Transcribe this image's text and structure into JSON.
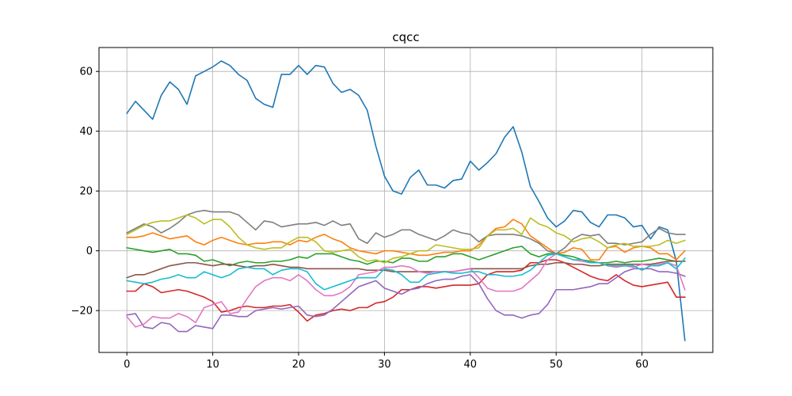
{
  "chart_data": {
    "type": "line",
    "title": "cqcc",
    "xlabel": "",
    "ylabel": "",
    "xlim": [
      -3.25,
      68.25
    ],
    "ylim": [
      -34,
      68
    ],
    "xticks": [
      0,
      10,
      20,
      30,
      40,
      50,
      60
    ],
    "yticks": [
      -20,
      0,
      20,
      40,
      60
    ],
    "grid": true,
    "colors": [
      "#1f77b4",
      "#ff7f0e",
      "#2ca02c",
      "#d62728",
      "#9467bd",
      "#8c564b",
      "#e377c2",
      "#7f7f7f",
      "#bcbd22",
      "#17becf"
    ],
    "x": [
      0,
      1,
      2,
      3,
      4,
      5,
      6,
      7,
      8,
      9,
      10,
      11,
      12,
      13,
      14,
      15,
      16,
      17,
      18,
      19,
      20,
      21,
      22,
      23,
      24,
      25,
      26,
      27,
      28,
      29,
      30,
      31,
      32,
      33,
      34,
      35,
      36,
      37,
      38,
      39,
      40,
      41,
      42,
      43,
      44,
      45,
      46,
      47,
      48,
      49,
      50,
      51,
      52,
      53,
      54,
      55,
      56,
      57,
      58,
      59,
      60,
      61,
      62,
      63,
      64,
      65
    ],
    "series": [
      {
        "values": [
          46,
          50,
          47,
          44,
          52,
          56.5,
          54,
          49,
          58.5,
          60,
          61.5,
          63.5,
          62,
          59,
          57,
          51,
          49,
          48,
          59,
          59,
          62,
          59,
          62,
          61.5,
          56,
          53,
          54,
          52,
          47,
          35,
          25,
          20,
          19,
          24.5,
          27,
          22,
          22,
          21,
          23.5,
          24,
          30,
          27,
          29.5,
          32.5,
          38,
          41.5,
          33,
          21.5,
          16.5,
          11,
          8,
          10,
          13.5,
          13,
          9.5,
          8,
          12,
          12,
          11,
          8,
          8.5,
          4,
          8,
          7,
          -3.5,
          -30
        ]
      },
      {
        "values": [
          4.5,
          4.5,
          5,
          6,
          5,
          4,
          4.5,
          5,
          3,
          2,
          3.5,
          4.5,
          3.5,
          2.5,
          2,
          2.5,
          2.5,
          3,
          3,
          2,
          3.5,
          3,
          4.5,
          5.5,
          4,
          3,
          1,
          0,
          -0.5,
          -1,
          0,
          0,
          -0.5,
          -1,
          -1.5,
          -1.5,
          -1,
          -0.5,
          -0.5,
          0,
          0,
          2,
          5,
          7.5,
          8,
          10.5,
          9,
          5,
          3,
          1,
          -1,
          -0.5,
          1,
          0.5,
          -3,
          -3,
          1,
          1.5,
          -0.5,
          1,
          1.5,
          1,
          -1,
          -1,
          -3,
          0
        ]
      },
      {
        "values": [
          1,
          0.5,
          0,
          -0.5,
          0,
          0.5,
          -1,
          -1,
          -1.5,
          -3.5,
          -3,
          -4,
          -5,
          -4,
          -3.5,
          -4,
          -4,
          -3.5,
          -3.5,
          -3,
          -2,
          -2.5,
          -1,
          -1,
          -1,
          -2,
          -3,
          -3.5,
          -4.5,
          -3.5,
          -3.5,
          -4,
          -2.5,
          -2.5,
          -3.5,
          -3.5,
          -2,
          -2,
          -1,
          -1,
          -2,
          -3,
          -2,
          -1,
          0,
          1,
          1.5,
          -1,
          -2,
          -1,
          -1,
          -1.5,
          -2,
          -3,
          -3.5,
          -4,
          -4,
          -3.5,
          -4,
          -3.5,
          -3.5,
          -3,
          -2.5,
          -3,
          -3.5,
          -3.5
        ]
      },
      {
        "values": [
          -13.5,
          -13.5,
          -11,
          -12,
          -14,
          -13.5,
          -13,
          -13.5,
          -14.5,
          -15.5,
          -17,
          -20.5,
          -20,
          -19,
          -18.5,
          -19,
          -19,
          -18.5,
          -18.5,
          -18,
          -20.5,
          -23.5,
          -21.5,
          -21,
          -20,
          -19.5,
          -20,
          -19,
          -19,
          -17.5,
          -17,
          -15.5,
          -13,
          -13,
          -12,
          -12,
          -12.5,
          -12,
          -11.5,
          -11.5,
          -11.5,
          -11,
          -8,
          -7,
          -7,
          -7,
          -6.5,
          -4,
          -4,
          -3,
          -3,
          -4,
          -5.5,
          -7,
          -8.5,
          -9.5,
          -10,
          -8,
          -10,
          -11.5,
          -12,
          -11.5,
          -11,
          -10.5,
          -15.5,
          -15.5
        ]
      },
      {
        "values": [
          -21.5,
          -21,
          -25.5,
          -26,
          -24,
          -24.5,
          -27,
          -27,
          -25,
          -25.5,
          -26,
          -21.5,
          -21.5,
          -22,
          -22,
          -20,
          -19.5,
          -19,
          -19.5,
          -19,
          -18.5,
          -21.5,
          -22,
          -21.5,
          -19.5,
          -17,
          -14.5,
          -12,
          -11,
          -10,
          -12.5,
          -13.5,
          -14.5,
          -13,
          -12.5,
          -11,
          -10,
          -9.5,
          -9.5,
          -8.5,
          -8,
          -11,
          -16,
          -20,
          -21.5,
          -21.5,
          -22.5,
          -21.5,
          -21,
          -18,
          -13,
          -13,
          -13,
          -12.5,
          -12,
          -11,
          -11,
          -9,
          -7,
          -6,
          -6,
          -6,
          -7,
          -7,
          -7.5,
          -8.5
        ]
      },
      {
        "values": [
          -9,
          -8,
          -8,
          -7,
          -6,
          -5,
          -4.5,
          -4,
          -4,
          -4.5,
          -5,
          -4.5,
          -4.5,
          -5,
          -5.5,
          -5,
          -5,
          -4.5,
          -5,
          -5.5,
          -5.5,
          -6,
          -6,
          -6,
          -6,
          -6,
          -6,
          -6,
          -6.5,
          -6.5,
          -6.5,
          -7,
          -7,
          -7,
          -7,
          -7,
          -7,
          -7,
          -7,
          -6.5,
          -6,
          -6,
          -6,
          -6,
          -6,
          -6,
          -6,
          -5,
          -4.5,
          -4.5,
          -4,
          -4,
          -4.5,
          -4.5,
          -5,
          -5,
          -4.5,
          -4.5,
          -4.5,
          -4.5,
          -4.5,
          -4.5,
          -4,
          -3.5,
          -3.5,
          -3.5
        ]
      },
      {
        "values": [
          -22,
          -25.5,
          -24.5,
          -22,
          -22.5,
          -22.5,
          -21,
          -22,
          -24,
          -19,
          -18,
          -17,
          -21,
          -20.5,
          -16,
          -12,
          -10,
          -9,
          -9,
          -10,
          -8,
          -10,
          -13,
          -15,
          -15,
          -14,
          -12,
          -8,
          -7.5,
          -7,
          -5.5,
          -5.5,
          -5,
          -5.5,
          -7,
          -7.5,
          -7,
          -7,
          -7,
          -6.5,
          -6,
          -9,
          -12.5,
          -13.5,
          -13.5,
          -13.5,
          -12.5,
          -10,
          -7.5,
          -3,
          -1,
          -2,
          -3,
          -3.5,
          -4,
          -4,
          -5,
          -5.5,
          -5,
          -5.5,
          -4.5,
          -5,
          -4.5,
          -4,
          -5,
          -13
        ]
      },
      {
        "values": [
          6,
          7.5,
          9,
          8,
          6,
          7.5,
          9.5,
          12,
          13,
          13.5,
          13,
          13,
          13,
          12,
          9.5,
          7,
          10,
          9.5,
          8,
          8.5,
          9,
          9,
          9.5,
          8.5,
          10,
          8.5,
          9,
          4,
          2.5,
          6,
          4.5,
          5.5,
          7,
          7,
          5.5,
          4.5,
          3.5,
          5,
          7,
          6,
          5.5,
          3,
          5,
          5.5,
          5.5,
          5.5,
          5,
          4,
          2.5,
          0,
          -1,
          1,
          4,
          5.5,
          5,
          5.5,
          2.5,
          2.5,
          2,
          2.5,
          3,
          5.5,
          7.5,
          6,
          5.5,
          5.5
        ]
      },
      {
        "values": [
          5.5,
          7,
          8.5,
          9.5,
          10,
          10,
          11,
          12,
          11,
          9,
          10.5,
          10.5,
          8,
          4.5,
          2,
          1,
          0.5,
          1,
          1,
          3,
          4.5,
          4.5,
          3,
          0,
          -0.5,
          0,
          0.5,
          -2,
          -3.5,
          -3,
          -4,
          -2.5,
          -2,
          -1,
          0,
          0,
          2,
          1.5,
          1,
          0.5,
          0.5,
          1,
          5,
          7,
          7,
          7.5,
          5.5,
          11,
          9,
          8,
          6,
          5,
          3,
          4,
          4.5,
          3,
          1,
          2,
          2.5,
          1.5,
          1.5,
          1.5,
          2,
          3.5,
          2.5,
          3.5
        ]
      },
      {
        "values": [
          -10,
          -10.5,
          -11,
          -10.5,
          -9.5,
          -9,
          -8,
          -9,
          -9,
          -7,
          -8,
          -9,
          -8,
          -6,
          -5.5,
          -6,
          -6,
          -8,
          -6.5,
          -6,
          -6,
          -7,
          -11,
          -13,
          -12,
          -11,
          -10,
          -9,
          -9,
          -9,
          -6,
          -6.5,
          -8,
          -10.5,
          -10.5,
          -8,
          -7.5,
          -7,
          -7.5,
          -7.5,
          -7,
          -7,
          -8,
          -8,
          -8.5,
          -8.5,
          -8,
          -6.5,
          -4,
          -1.5,
          -1,
          -2,
          -3,
          -3,
          -4,
          -4,
          -5,
          -5,
          -5,
          -5,
          -6.5,
          -5,
          -5,
          -4,
          -6,
          -2.5
        ]
      }
    ]
  }
}
